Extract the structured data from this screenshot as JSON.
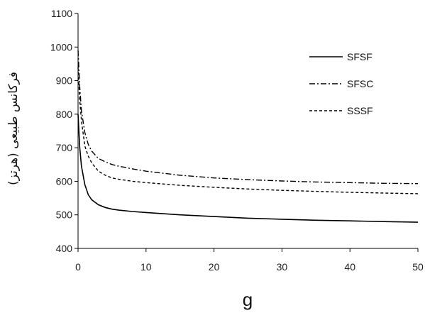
{
  "chart_data": {
    "type": "line",
    "title": "",
    "xlabel": "g",
    "ylabel": "فرکانس طبیعی (هرتز)",
    "xlim": [
      0,
      50
    ],
    "ylim": [
      400,
      1100
    ],
    "xticks": [
      0,
      10,
      20,
      30,
      40,
      50
    ],
    "yticks": [
      400,
      500,
      600,
      700,
      800,
      900,
      1000,
      1100
    ],
    "grid": false,
    "legend_position": "top-right",
    "series": [
      {
        "name": "SFSF",
        "line_style": "solid",
        "color": "#000000",
        "x": [
          0,
          0.25,
          0.5,
          1,
          1.5,
          2,
          3,
          4,
          5,
          6,
          8,
          10,
          15,
          20,
          25,
          30,
          35,
          40,
          45,
          50
        ],
        "y": [
          800,
          700,
          645,
          590,
          560,
          545,
          530,
          522,
          517,
          514,
          510,
          507,
          500,
          495,
          490,
          487,
          484,
          482,
          480,
          478
        ]
      },
      {
        "name": "SFSC",
        "line_style": "dashdot",
        "color": "#000000",
        "x": [
          0,
          0.25,
          0.5,
          1,
          1.5,
          2,
          3,
          4,
          5,
          6,
          8,
          10,
          15,
          20,
          25,
          30,
          35,
          40,
          45,
          50
        ],
        "y": [
          990,
          880,
          810,
          745,
          710,
          690,
          668,
          658,
          650,
          645,
          637,
          630,
          618,
          610,
          605,
          601,
          598,
          596,
          594,
          593
        ]
      },
      {
        "name": "SSSF",
        "line_style": "dashed",
        "color": "#000000",
        "x": [
          0,
          0.25,
          0.5,
          1,
          1.5,
          2,
          3,
          4,
          5,
          6,
          8,
          10,
          15,
          20,
          25,
          30,
          35,
          40,
          45,
          50
        ],
        "y": [
          940,
          840,
          780,
          705,
          675,
          655,
          630,
          618,
          610,
          606,
          600,
          596,
          588,
          582,
          577,
          573,
          570,
          567,
          565,
          563
        ]
      }
    ]
  }
}
